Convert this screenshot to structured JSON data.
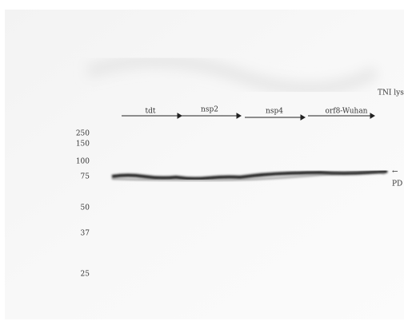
{
  "header": {
    "label": "TNI lys"
  },
  "lanes": [
    {
      "label": "tdt"
    },
    {
      "label": "nsp2"
    },
    {
      "label": "nsp4"
    },
    {
      "label": "orf8-Wuhan"
    }
  ],
  "markers": [
    "250",
    "150",
    "100",
    "75",
    "50",
    "37",
    "25"
  ],
  "band": {
    "arrow": "←",
    "label": "PD"
  }
}
